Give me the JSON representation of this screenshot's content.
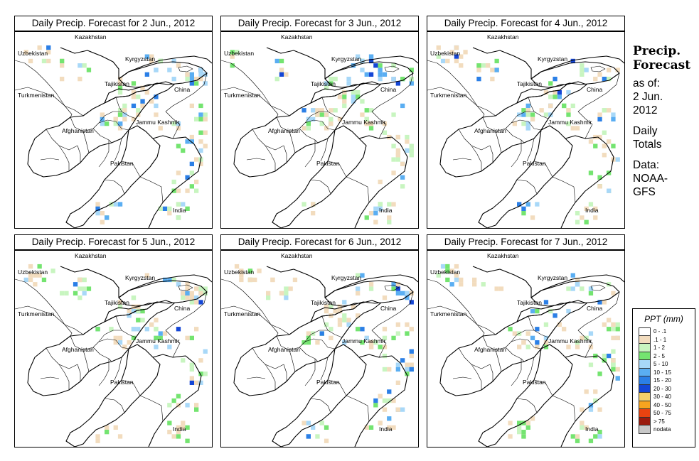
{
  "panels": [
    {
      "title": "Daily Precip. Forecast for  2 Jun., 2012",
      "seed": 11
    },
    {
      "title": "Daily Precip. Forecast for  3 Jun., 2012",
      "seed": 23
    },
    {
      "title": "Daily Precip. Forecast for  4 Jun., 2012",
      "seed": 37
    },
    {
      "title": "Daily Precip. Forecast for  5 Jun., 2012",
      "seed": 41
    },
    {
      "title": "Daily Precip. Forecast for  6 Jun., 2012",
      "seed": 53
    },
    {
      "title": "Daily Precip. Forecast for  7 Jun., 2012",
      "seed": 67
    }
  ],
  "map_labels": {
    "kazakhstan": "Kazakhstan",
    "uzbekistan": "Uzbekistan",
    "kyrgyzstan": "Kyrgyzstan",
    "tajikistan": "Tajikistan",
    "turkmenistan": "Turkmenistan",
    "china": "China",
    "jammu_kashmir": "Jammu Kashmir",
    "afghanistan": "Afghanistan",
    "pakistan": "Pakistan",
    "india": "India"
  },
  "sidebar": {
    "heading_line1": "Precip.",
    "heading_line2": "Forecast",
    "asof_line1": "as of:",
    "asof_line2": "2 Jun.",
    "asof_line3": "2012",
    "daily_line1": "Daily",
    "daily_line2": "Totals",
    "data_line1": "Data:",
    "data_line2": "NOAA-",
    "data_line3": "GFS"
  },
  "legend": {
    "title": "PPT (mm)",
    "items": [
      {
        "label": "0 - .1",
        "color": "#ffffff"
      },
      {
        "label": ".1 - 1",
        "color": "#f2dcbe"
      },
      {
        "label": "1 - 2",
        "color": "#c8f5c0"
      },
      {
        "label": "2 - 5",
        "color": "#74e470"
      },
      {
        "label": "5 - 10",
        "color": "#a8d8f8"
      },
      {
        "label": "10 - 15",
        "color": "#5aaef2"
      },
      {
        "label": "15 - 20",
        "color": "#2b7fe6"
      },
      {
        "label": "20 - 30",
        "color": "#1446d6"
      },
      {
        "label": "30 - 40",
        "color": "#f4d06a"
      },
      {
        "label": "40 - 50",
        "color": "#f7a41f"
      },
      {
        "label": "50 - 75",
        "color": "#e84310"
      },
      {
        "label": "> 75",
        "color": "#9a1b0e"
      },
      {
        "label": "nodata",
        "color": "#c8c8c8"
      }
    ]
  }
}
